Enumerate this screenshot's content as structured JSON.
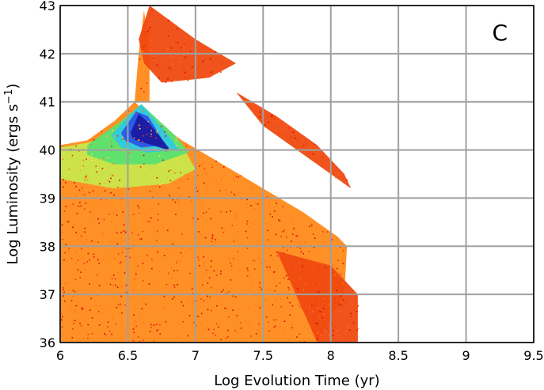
{
  "chart_data": {
    "type": "heatmap",
    "title": "",
    "panel_label": "C",
    "xlabel": "Log Evolution Time (yr)",
    "ylabel_main": "Log Luminosity (ergs s",
    "ylabel_sup": "−1",
    "ylabel_tail": ")",
    "xlim": [
      6,
      9.5
    ],
    "ylim": [
      36,
      43
    ],
    "x_ticks": [
      6,
      6.5,
      7,
      7.5,
      8,
      8.5,
      9,
      9.5
    ],
    "x_tick_labels": [
      "6",
      "6.5",
      "7",
      "7.5",
      "8",
      "8.5",
      "9",
      "9.5"
    ],
    "y_ticks": [
      36,
      37,
      38,
      39,
      40,
      41,
      42,
      43
    ],
    "y_tick_labels": [
      "36",
      "37",
      "38",
      "39",
      "40",
      "41",
      "42",
      "43"
    ],
    "grid": true,
    "colorscale": [
      "#e01010",
      "#f04a10",
      "#ff8a1a",
      "#ffcc33",
      "#c8e84a",
      "#5ae070",
      "#30c8e0",
      "#2a55e8",
      "#1a1aa0"
    ],
    "density_regions": [
      {
        "name": "main-envelope",
        "x": [
          6.0,
          6.2,
          6.4,
          6.55,
          6.7,
          6.9,
          7.2,
          7.5,
          7.8,
          8.05,
          8.12,
          8.1,
          7.9,
          7.0,
          6.0
        ],
        "y": [
          40.1,
          40.2,
          40.6,
          41.0,
          40.6,
          40.2,
          39.7,
          39.2,
          38.7,
          38.2,
          38.0,
          37.0,
          36.0,
          36.0,
          36.0
        ],
        "level": 0.25
      },
      {
        "name": "warm-core",
        "x": [
          6.0,
          6.3,
          6.5,
          6.7,
          6.9,
          7.0,
          6.8,
          6.4,
          6.0
        ],
        "y": [
          40.05,
          40.2,
          40.6,
          40.5,
          40.1,
          39.6,
          39.3,
          39.2,
          39.4
        ],
        "level": 0.5
      },
      {
        "name": "yellow-core",
        "x": [
          6.2,
          6.45,
          6.6,
          6.85,
          6.95,
          6.7,
          6.4,
          6.2
        ],
        "y": [
          40.1,
          40.6,
          40.95,
          40.3,
          39.95,
          39.7,
          39.7,
          39.9
        ],
        "level": 0.65
      },
      {
        "name": "green-core",
        "x": [
          6.38,
          6.5,
          6.6,
          6.8,
          6.88,
          6.65,
          6.45
        ],
        "y": [
          40.3,
          40.7,
          40.95,
          40.3,
          40.0,
          39.95,
          40.05
        ],
        "level": 0.78
      },
      {
        "name": "cyan-core",
        "x": [
          6.45,
          6.56,
          6.65,
          6.78,
          6.6,
          6.48
        ],
        "y": [
          40.35,
          40.8,
          40.7,
          40.1,
          40.05,
          40.2
        ],
        "level": 0.88
      },
      {
        "name": "blue-peak",
        "x": [
          6.52,
          6.58,
          6.66,
          6.82,
          6.62,
          6.54
        ],
        "y": [
          40.35,
          40.75,
          40.55,
          39.98,
          40.15,
          40.22
        ],
        "level": 0.96
      },
      {
        "name": "spike",
        "x": [
          6.55,
          6.58,
          6.62,
          6.66,
          6.66
        ],
        "y": [
          41.0,
          42.0,
          42.9,
          42.0,
          41.0
        ],
        "level": 0.3
      },
      {
        "name": "upper-plume",
        "x": [
          6.58,
          6.66,
          7.0,
          7.3,
          7.1,
          6.75,
          6.62
        ],
        "y": [
          42.3,
          43.0,
          42.3,
          41.8,
          41.5,
          41.4,
          41.8
        ],
        "level": 0.15
      },
      {
        "name": "upper-band",
        "x": [
          7.3,
          7.6,
          7.9,
          8.1,
          8.15,
          7.9,
          7.5
        ],
        "y": [
          41.2,
          40.7,
          40.1,
          39.5,
          39.2,
          39.7,
          40.5
        ],
        "level": 0.15
      },
      {
        "name": "lower-tail",
        "x": [
          7.6,
          8.0,
          8.2,
          8.2,
          7.9
        ],
        "y": [
          37.9,
          37.6,
          37.0,
          36.0,
          36.0
        ],
        "level": 0.15
      }
    ]
  }
}
